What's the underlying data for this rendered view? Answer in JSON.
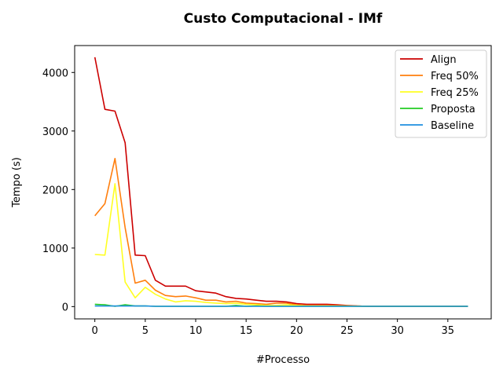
{
  "chart_data": {
    "type": "line",
    "title": "Custo Computacional - IMf",
    "xlabel": "#Processo",
    "ylabel": "Tempo (s)",
    "xlim": [
      -2,
      39.3
    ],
    "ylim": [
      -210,
      4460
    ],
    "xticks": [
      0,
      5,
      10,
      15,
      20,
      25,
      30,
      35
    ],
    "yticks": [
      0,
      1000,
      2000,
      3000,
      4000
    ],
    "grid": false,
    "legend_position": "top-right",
    "x": [
      0,
      1,
      2,
      3,
      4,
      5,
      6,
      7,
      8,
      9,
      10,
      11,
      12,
      13,
      14,
      15,
      16,
      17,
      18,
      19,
      20,
      21,
      22,
      23,
      24,
      25,
      26,
      27,
      28,
      29,
      30,
      31,
      32,
      33,
      34,
      35,
      36,
      37
    ],
    "series": [
      {
        "name": "Align",
        "color": "#cc0000",
        "values": [
          4260,
          3370,
          3340,
          2800,
          880,
          870,
          450,
          350,
          350,
          350,
          270,
          250,
          230,
          170,
          140,
          130,
          110,
          90,
          90,
          80,
          50,
          40,
          40,
          40,
          30,
          20,
          10,
          5,
          5,
          5,
          5,
          5,
          5,
          5,
          5,
          5,
          5,
          5
        ]
      },
      {
        "name": "Freq 50%",
        "color": "#ff7f0e",
        "values": [
          1550,
          1760,
          2530,
          1350,
          400,
          450,
          280,
          190,
          170,
          180,
          150,
          110,
          110,
          80,
          90,
          60,
          50,
          40,
          60,
          60,
          30,
          20,
          20,
          20,
          15,
          10,
          10,
          5,
          5,
          5,
          5,
          5,
          5,
          5,
          5,
          5,
          5,
          5
        ]
      },
      {
        "name": "Freq 25%",
        "color": "#ffff22",
        "values": [
          890,
          880,
          2100,
          420,
          150,
          330,
          210,
          130,
          80,
          100,
          90,
          70,
          60,
          50,
          60,
          40,
          30,
          20,
          20,
          30,
          20,
          10,
          10,
          10,
          10,
          10,
          5,
          5,
          5,
          5,
          5,
          5,
          5,
          5,
          5,
          5,
          5,
          5
        ]
      },
      {
        "name": "Proposta",
        "color": "#22cc22",
        "values": [
          40,
          30,
          5,
          30,
          10,
          10,
          5,
          5,
          5,
          5,
          5,
          5,
          5,
          5,
          20,
          5,
          10,
          5,
          5,
          5,
          5,
          5,
          5,
          5,
          5,
          5,
          5,
          5,
          5,
          5,
          5,
          5,
          5,
          5,
          5,
          5,
          5,
          5
        ]
      },
      {
        "name": "Baseline",
        "color": "#1f8fe0",
        "values": [
          10,
          10,
          10,
          10,
          10,
          10,
          5,
          5,
          5,
          5,
          5,
          5,
          5,
          5,
          5,
          5,
          5,
          5,
          5,
          5,
          5,
          5,
          5,
          5,
          5,
          5,
          5,
          5,
          5,
          5,
          5,
          5,
          5,
          5,
          5,
          5,
          5,
          5
        ]
      }
    ]
  }
}
